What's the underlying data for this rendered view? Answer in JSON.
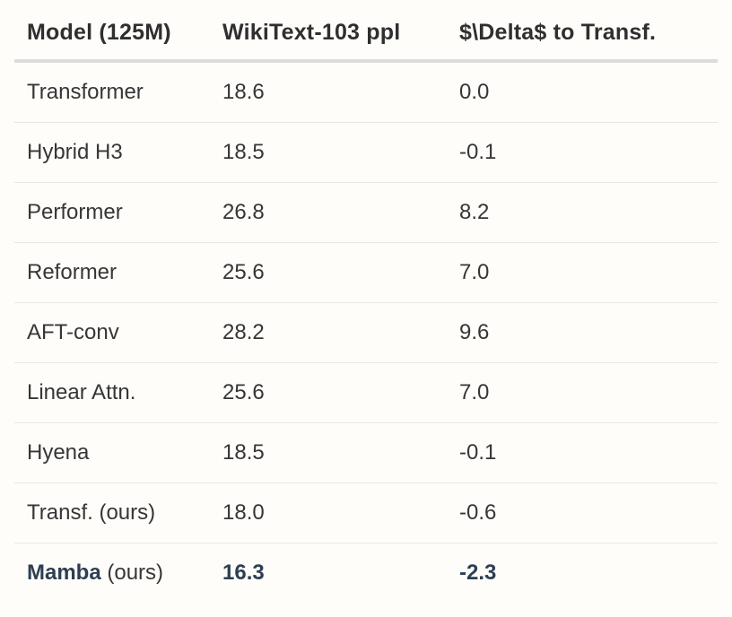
{
  "page": {
    "background": "#fffdfa"
  },
  "table": {
    "columns": [
      {
        "id": "model",
        "label": "Model (125M)"
      },
      {
        "id": "ppl",
        "label": "WikiText-103 ppl"
      },
      {
        "id": "delta",
        "label": "$\\Delta$ to Transf."
      }
    ],
    "rows": [
      {
        "name": "Transformer",
        "ppl": "18.6",
        "delta": "0.0"
      },
      {
        "name": "Hybrid H3",
        "ppl": "18.5",
        "delta": "-0.1"
      },
      {
        "name": "Performer",
        "ppl": "26.8",
        "delta": "8.2"
      },
      {
        "name": "Reformer",
        "ppl": "25.6",
        "delta": "7.0"
      },
      {
        "name": "AFT-conv",
        "ppl": "28.2",
        "delta": "9.6"
      },
      {
        "name": "Linear Attn.",
        "ppl": "25.6",
        "delta": "7.0"
      },
      {
        "name": "Hyena",
        "ppl": "18.5",
        "delta": "-0.1"
      },
      {
        "name": "Transf. (ours)",
        "ppl": "18.0",
        "delta": "-0.6"
      },
      {
        "name_strong": "Mamba",
        "name_rest": "(ours)",
        "ppl": "16.3",
        "delta": "-2.3",
        "emphasis": true
      }
    ],
    "colors": {
      "header_text": "#2f2f2f",
      "body_text": "#363636",
      "emphasis_text": "#2e3f52",
      "header_rule": "#dcdcdc",
      "row_rule": "#e8e7e3",
      "background": "#fffdfa"
    }
  }
}
